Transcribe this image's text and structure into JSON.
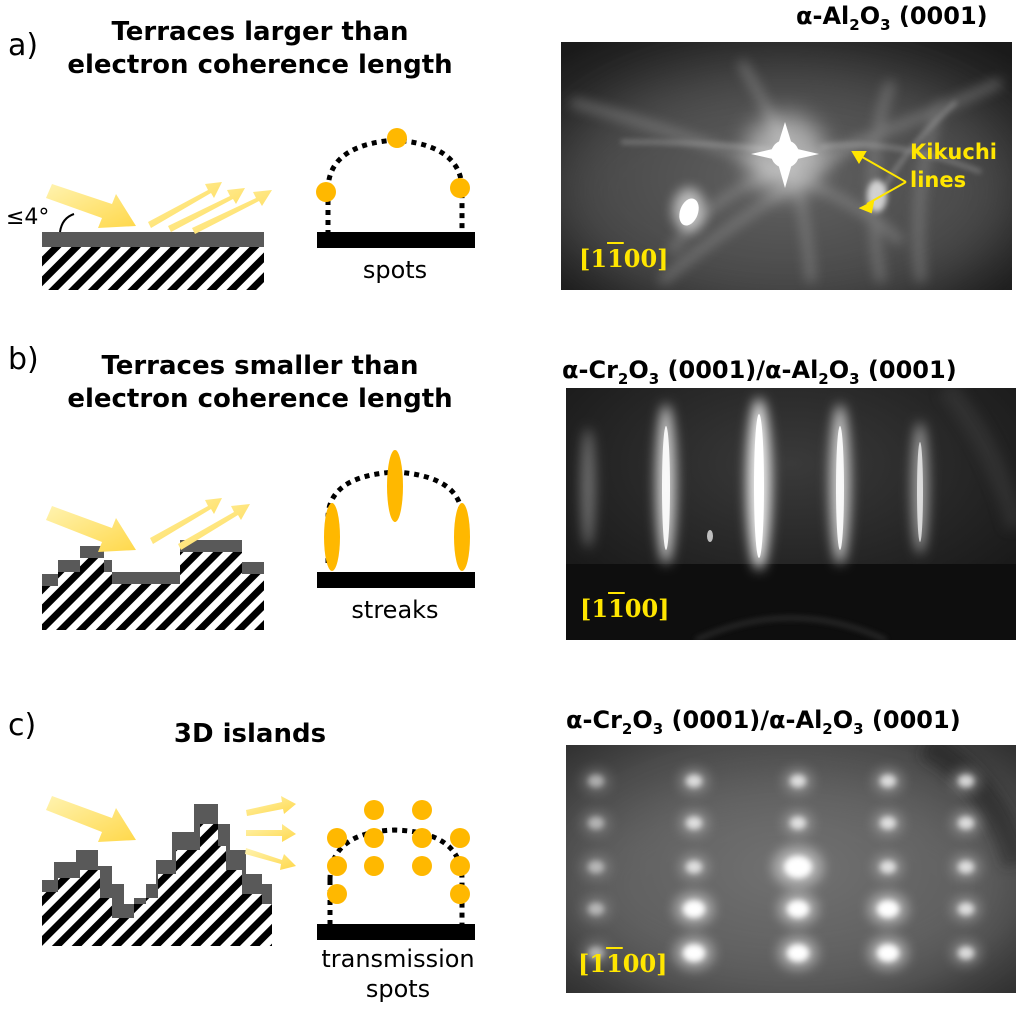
{
  "panel_a": {
    "letter": "a)",
    "title_line1": "Terraces larger than",
    "title_line2": "electron coherence length",
    "angle_label": "≤4°",
    "caption": "spots",
    "image_title_parts": [
      "α-Al",
      "2",
      "O",
      "3",
      " (0001)"
    ],
    "direction": "[1100]",
    "kikuchi_line1": "Kikuchi",
    "kikuchi_line2": "lines"
  },
  "panel_b": {
    "letter": "b)",
    "title_line1": "Terraces smaller than",
    "title_line2": "electron coherence length",
    "caption": "streaks",
    "image_title_parts": [
      "α-Cr",
      "2",
      "O",
      "3",
      " (0001)/α-Al",
      "2",
      "O",
      "3",
      " (0001)"
    ],
    "direction": "[1100]"
  },
  "panel_c": {
    "letter": "c)",
    "title": "3D islands",
    "caption_line1": "transmission",
    "caption_line2": "spots",
    "image_title_parts": [
      "α-Cr",
      "2",
      "O",
      "3",
      " (0001)/α-Al",
      "2",
      "O",
      "3",
      " (0001)"
    ],
    "direction": "[1100]"
  },
  "colors": {
    "spot": "#ffb800",
    "arrow": "#ffe680",
    "surface": "#595959",
    "label_yellow": "#ffe600"
  }
}
